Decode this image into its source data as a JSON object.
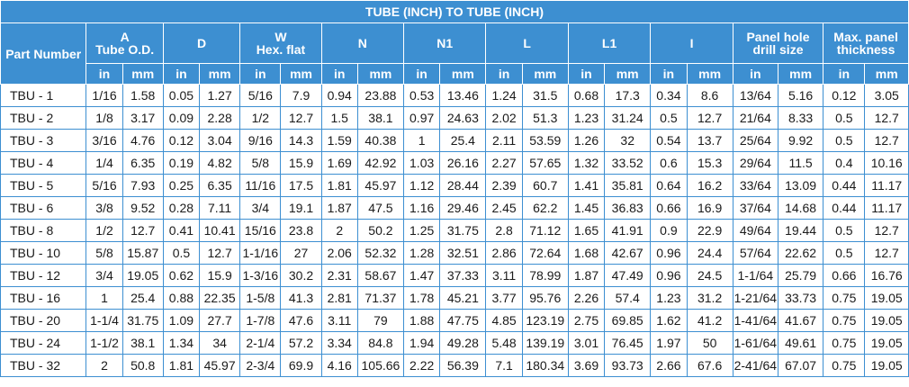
{
  "title": "TUBE (INCH) TO TUBE (INCH)",
  "part_number_header": "Part Number",
  "groups": [
    {
      "name": "A",
      "sub": "Tube O.D."
    },
    {
      "name": "D",
      "sub": ""
    },
    {
      "name": "W",
      "sub": "Hex. flat"
    },
    {
      "name": "N",
      "sub": ""
    },
    {
      "name": "N1",
      "sub": ""
    },
    {
      "name": "L",
      "sub": ""
    },
    {
      "name": "L1",
      "sub": ""
    },
    {
      "name": "I",
      "sub": ""
    },
    {
      "name": "Panel hole",
      "sub": "drill size"
    },
    {
      "name": "Max. panel",
      "sub": "thickness"
    }
  ],
  "units": [
    "in",
    "mm"
  ],
  "rows": [
    [
      "TBU - 1",
      "1/16",
      "1.58",
      "0.05",
      "1.27",
      "5/16",
      "7.9",
      "0.94",
      "23.88",
      "0.53",
      "13.46",
      "1.24",
      "31.5",
      "0.68",
      "17.3",
      "0.34",
      "8.6",
      "13/64",
      "5.16",
      "0.12",
      "3.05"
    ],
    [
      "TBU - 2",
      "1/8",
      "3.17",
      "0.09",
      "2.28",
      "1/2",
      "12.7",
      "1.5",
      "38.1",
      "0.97",
      "24.63",
      "2.02",
      "51.3",
      "1.23",
      "31.24",
      "0.5",
      "12.7",
      "21/64",
      "8.33",
      "0.5",
      "12.7"
    ],
    [
      "TBU - 3",
      "3/16",
      "4.76",
      "0.12",
      "3.04",
      "9/16",
      "14.3",
      "1.59",
      "40.38",
      "1",
      "25.4",
      "2.11",
      "53.59",
      "1.26",
      "32",
      "0.54",
      "13.7",
      "25/64",
      "9.92",
      "0.5",
      "12.7"
    ],
    [
      "TBU - 4",
      "1/4",
      "6.35",
      "0.19",
      "4.82",
      "5/8",
      "15.9",
      "1.69",
      "42.92",
      "1.03",
      "26.16",
      "2.27",
      "57.65",
      "1.32",
      "33.52",
      "0.6",
      "15.3",
      "29/64",
      "11.5",
      "0.4",
      "10.16"
    ],
    [
      "TBU - 5",
      "5/16",
      "7.93",
      "0.25",
      "6.35",
      "11/16",
      "17.5",
      "1.81",
      "45.97",
      "1.12",
      "28.44",
      "2.39",
      "60.7",
      "1.41",
      "35.81",
      "0.64",
      "16.2",
      "33/64",
      "13.09",
      "0.44",
      "11.17"
    ],
    [
      "TBU - 6",
      "3/8",
      "9.52",
      "0.28",
      "7.11",
      "3/4",
      "19.1",
      "1.87",
      "47.5",
      "1.16",
      "29.46",
      "2.45",
      "62.2",
      "1.45",
      "36.83",
      "0.66",
      "16.9",
      "37/64",
      "14.68",
      "0.44",
      "11.17"
    ],
    [
      "TBU - 8",
      "1/2",
      "12.7",
      "0.41",
      "10.41",
      "15/16",
      "23.8",
      "2",
      "50.2",
      "1.25",
      "31.75",
      "2.8",
      "71.12",
      "1.65",
      "41.91",
      "0.9",
      "22.9",
      "49/64",
      "19.44",
      "0.5",
      "12.7"
    ],
    [
      "TBU - 10",
      "5/8",
      "15.87",
      "0.5",
      "12.7",
      "1-1/16",
      "27",
      "2.06",
      "52.32",
      "1.28",
      "32.51",
      "2.86",
      "72.64",
      "1.68",
      "42.67",
      "0.96",
      "24.4",
      "57/64",
      "22.62",
      "0.5",
      "12.7"
    ],
    [
      "TBU - 12",
      "3/4",
      "19.05",
      "0.62",
      "15.9",
      "1-3/16",
      "30.2",
      "2.31",
      "58.67",
      "1.47",
      "37.33",
      "3.11",
      "78.99",
      "1.87",
      "47.49",
      "0.96",
      "24.5",
      "1-1/64",
      "25.79",
      "0.66",
      "16.76"
    ],
    [
      "TBU - 16",
      "1",
      "25.4",
      "0.88",
      "22.35",
      "1-5/8",
      "41.3",
      "2.81",
      "71.37",
      "1.78",
      "45.21",
      "3.77",
      "95.76",
      "2.26",
      "57.4",
      "1.23",
      "31.2",
      "1-21/64",
      "33.73",
      "0.75",
      "19.05"
    ],
    [
      "TBU - 20",
      "1-1/4",
      "31.75",
      "1.09",
      "27.7",
      "1-7/8",
      "47.6",
      "3.11",
      "79",
      "1.88",
      "47.75",
      "4.85",
      "123.19",
      "2.75",
      "69.85",
      "1.62",
      "41.2",
      "1-41/64",
      "41.67",
      "0.75",
      "19.05"
    ],
    [
      "TBU - 24",
      "1-1/2",
      "38.1",
      "1.34",
      "34",
      "2-1/4",
      "57.2",
      "3.34",
      "84.8",
      "1.94",
      "49.28",
      "5.48",
      "139.19",
      "3.01",
      "76.45",
      "1.97",
      "50",
      "1-61/64",
      "49.61",
      "0.75",
      "19.05"
    ],
    [
      "TBU - 32",
      "2",
      "50.8",
      "1.81",
      "45.97",
      "2-3/4",
      "69.9",
      "4.16",
      "105.66",
      "2.22",
      "56.39",
      "7.1",
      "180.34",
      "3.69",
      "93.73",
      "2.66",
      "67.6",
      "2-41/64",
      "67.07",
      "0.75",
      "19.05"
    ]
  ],
  "colors": {
    "header_bg": "#3d8fd1",
    "header_text": "#ffffff",
    "border": "#3d8fd1"
  }
}
